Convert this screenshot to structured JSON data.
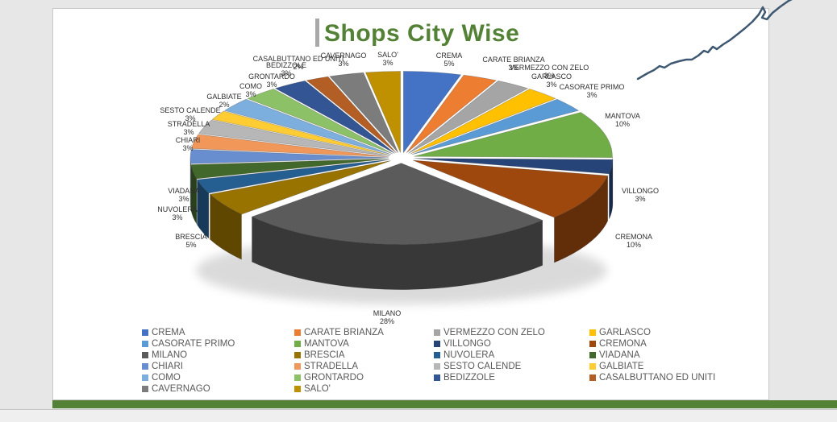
{
  "title": {
    "text": "Shops City Wise",
    "color": "#538135"
  },
  "chart_data": {
    "type": "pie",
    "style": "3d-exploded",
    "title": "Shops City Wise",
    "legend_position": "bottom",
    "data_labels": "category name and percentage",
    "categories": [
      "CREMA",
      "CARATE BRIANZA",
      "VERMEZZO CON ZELO",
      "GARLASCO",
      "CASORATE PRIMO",
      "MANTOVA",
      "VILLONGO",
      "CREMONA",
      "MILANO",
      "BRESCIA",
      "NUVOLERA",
      "VIADANA",
      "CHIARI",
      "STRADELLA",
      "SESTO CALENDE",
      "GALBIATE",
      "COMO",
      "GRONTARDO",
      "BEDIZZOLE",
      "CASALBUTTANO ED UNITI",
      "CAVERNAGO",
      "SALO'"
    ],
    "values": [
      5,
      3,
      3,
      3,
      3,
      10,
      3,
      10,
      28,
      5,
      3,
      3,
      3,
      3,
      3,
      2,
      3,
      3,
      3,
      2,
      3,
      3
    ],
    "unit": "%",
    "colors": [
      "#4472C4",
      "#ED7D31",
      "#A5A5A5",
      "#FFC000",
      "#5B9BD5",
      "#70AD47",
      "#264478",
      "#9E480E",
      "#5B5B5B",
      "#997300",
      "#255E91",
      "#43682B",
      "#698ED0",
      "#F1975A",
      "#B7B7B7",
      "#FFCD33",
      "#7CAFDD",
      "#8CC168",
      "#335593",
      "#B25E25",
      "#7C7C7C",
      "#BF9000"
    ]
  },
  "decor": {
    "green_bar_color": "#538135",
    "sparkline_color": "#3F5872",
    "page_background": "#E7E7E7"
  }
}
